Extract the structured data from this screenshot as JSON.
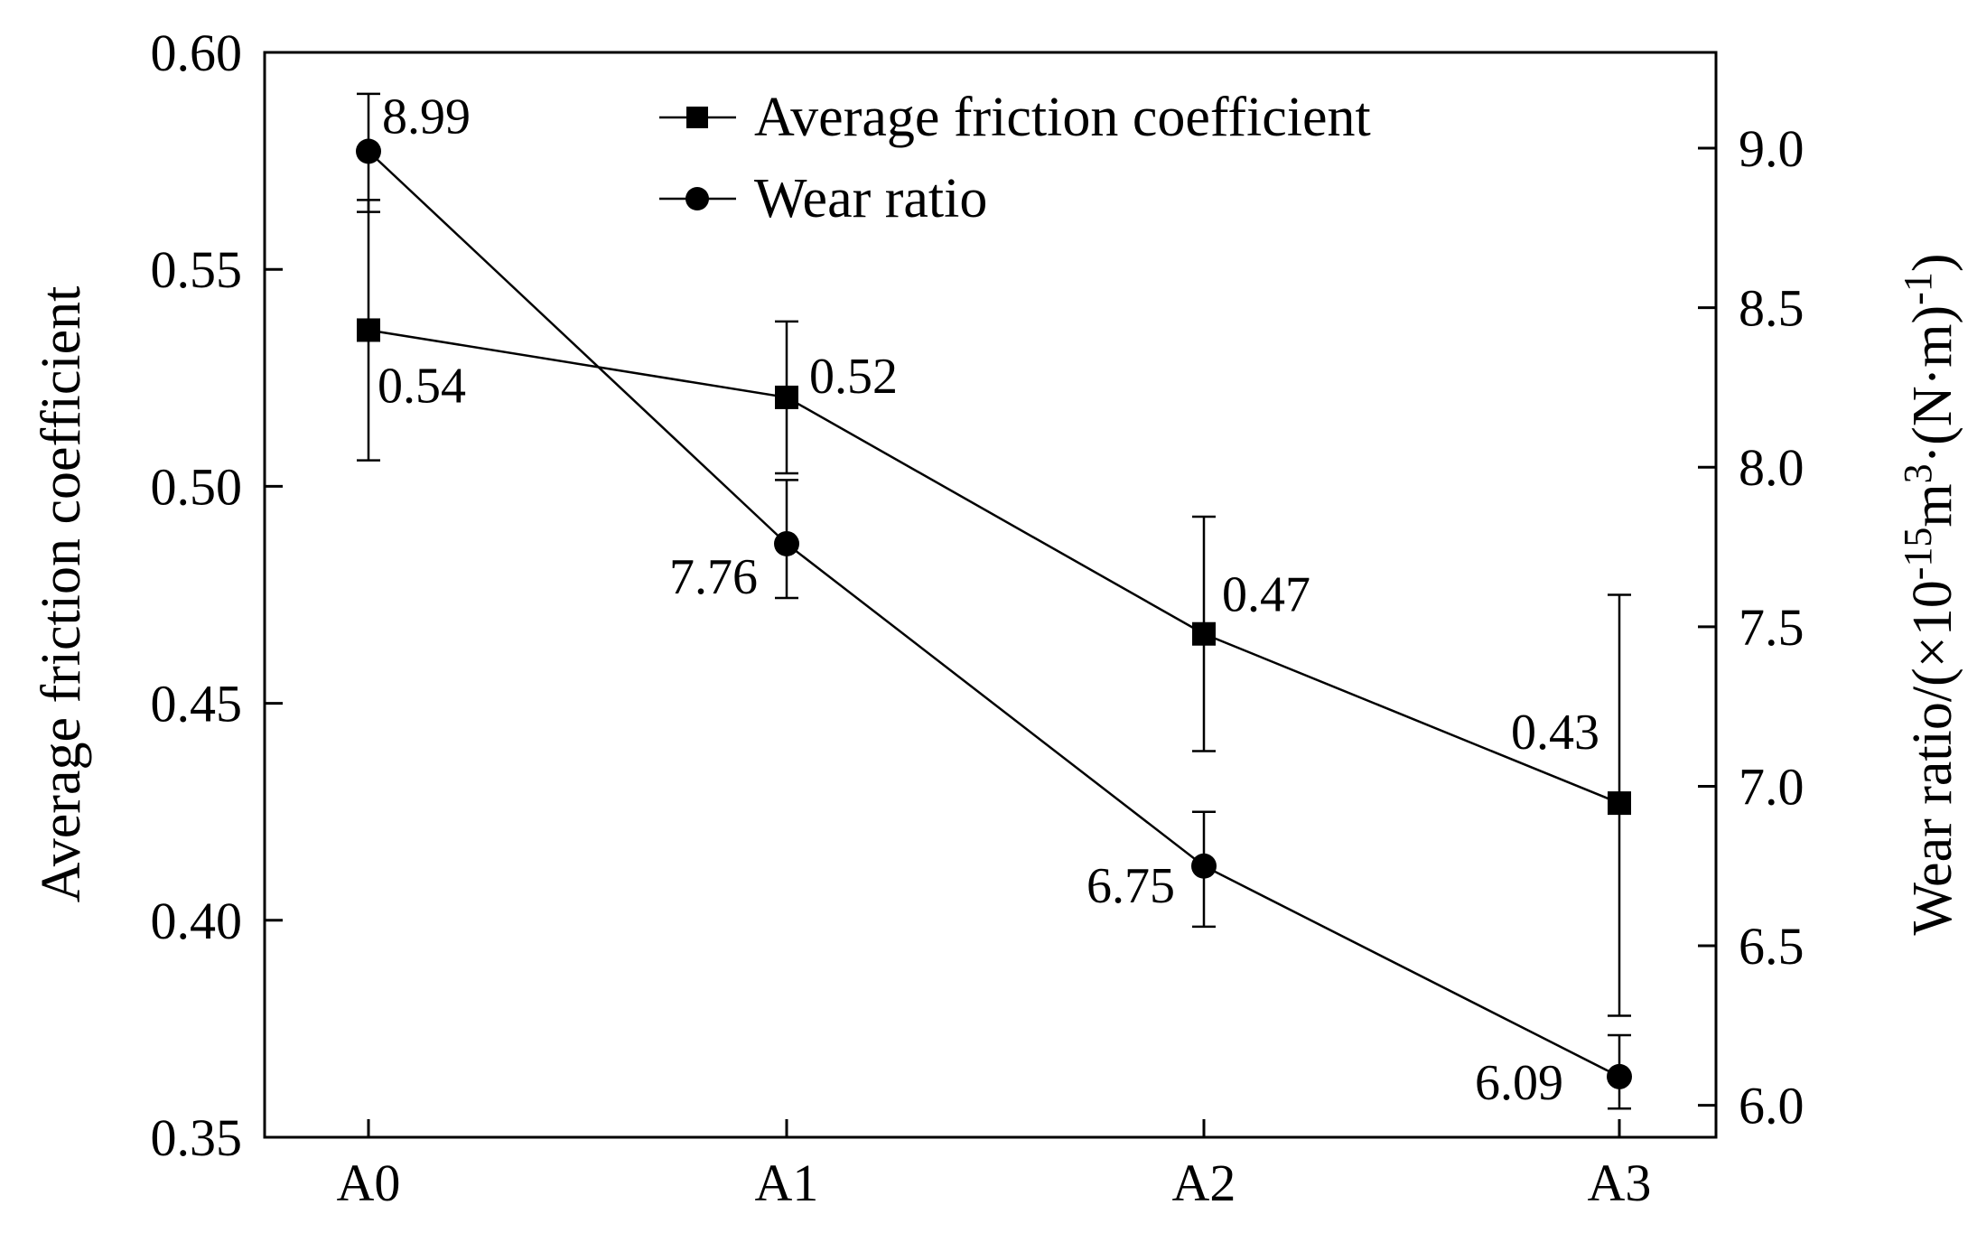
{
  "chart_data": {
    "type": "line",
    "title": "",
    "categories": [
      "A0",
      "A1",
      "A2",
      "A3"
    ],
    "xlabel": "",
    "ylabel_left": "Average friction coefficient",
    "ylabel_right": "Wear ratio/(×10-15m3·(N·m)-1)",
    "ylabel_right_parts": {
      "prefix": "Wear ratio/(×10",
      "exp1": "-15",
      "mid": "m",
      "exp2": "3",
      "mid2": "·(N·m)",
      "exp3": "-1",
      "suffix": ")"
    },
    "ylim_left": [
      0.35,
      0.6
    ],
    "yticks_left": [
      "0.35",
      "0.40",
      "0.45",
      "0.50",
      "0.55",
      "0.60"
    ],
    "ylim_right": [
      5.9,
      9.3
    ],
    "yticks_right": [
      "6.0",
      "6.5",
      "7.0",
      "7.5",
      "8.0",
      "8.5",
      "9.0"
    ],
    "legend_position": "top-center",
    "series": [
      {
        "name": "Average friction coefficient",
        "axis": "left",
        "marker": "square",
        "values": [
          0.536,
          0.5205,
          0.466,
          0.427
        ],
        "err_low": [
          0.506,
          0.503,
          0.439,
          0.378
        ],
        "err_high": [
          0.566,
          0.538,
          0.493,
          0.475
        ],
        "labels": [
          "0.54",
          "0.52",
          "0.47",
          "0.43"
        ]
      },
      {
        "name": "Wear ratio",
        "axis": "right",
        "marker": "circle",
        "values": [
          8.99,
          7.76,
          6.75,
          6.09
        ],
        "err_low": [
          8.8,
          7.59,
          6.56,
          5.99
        ],
        "err_high": [
          9.17,
          7.96,
          6.92,
          6.22
        ],
        "labels": [
          "8.99",
          "7.76",
          "6.75",
          "6.09"
        ]
      }
    ]
  }
}
